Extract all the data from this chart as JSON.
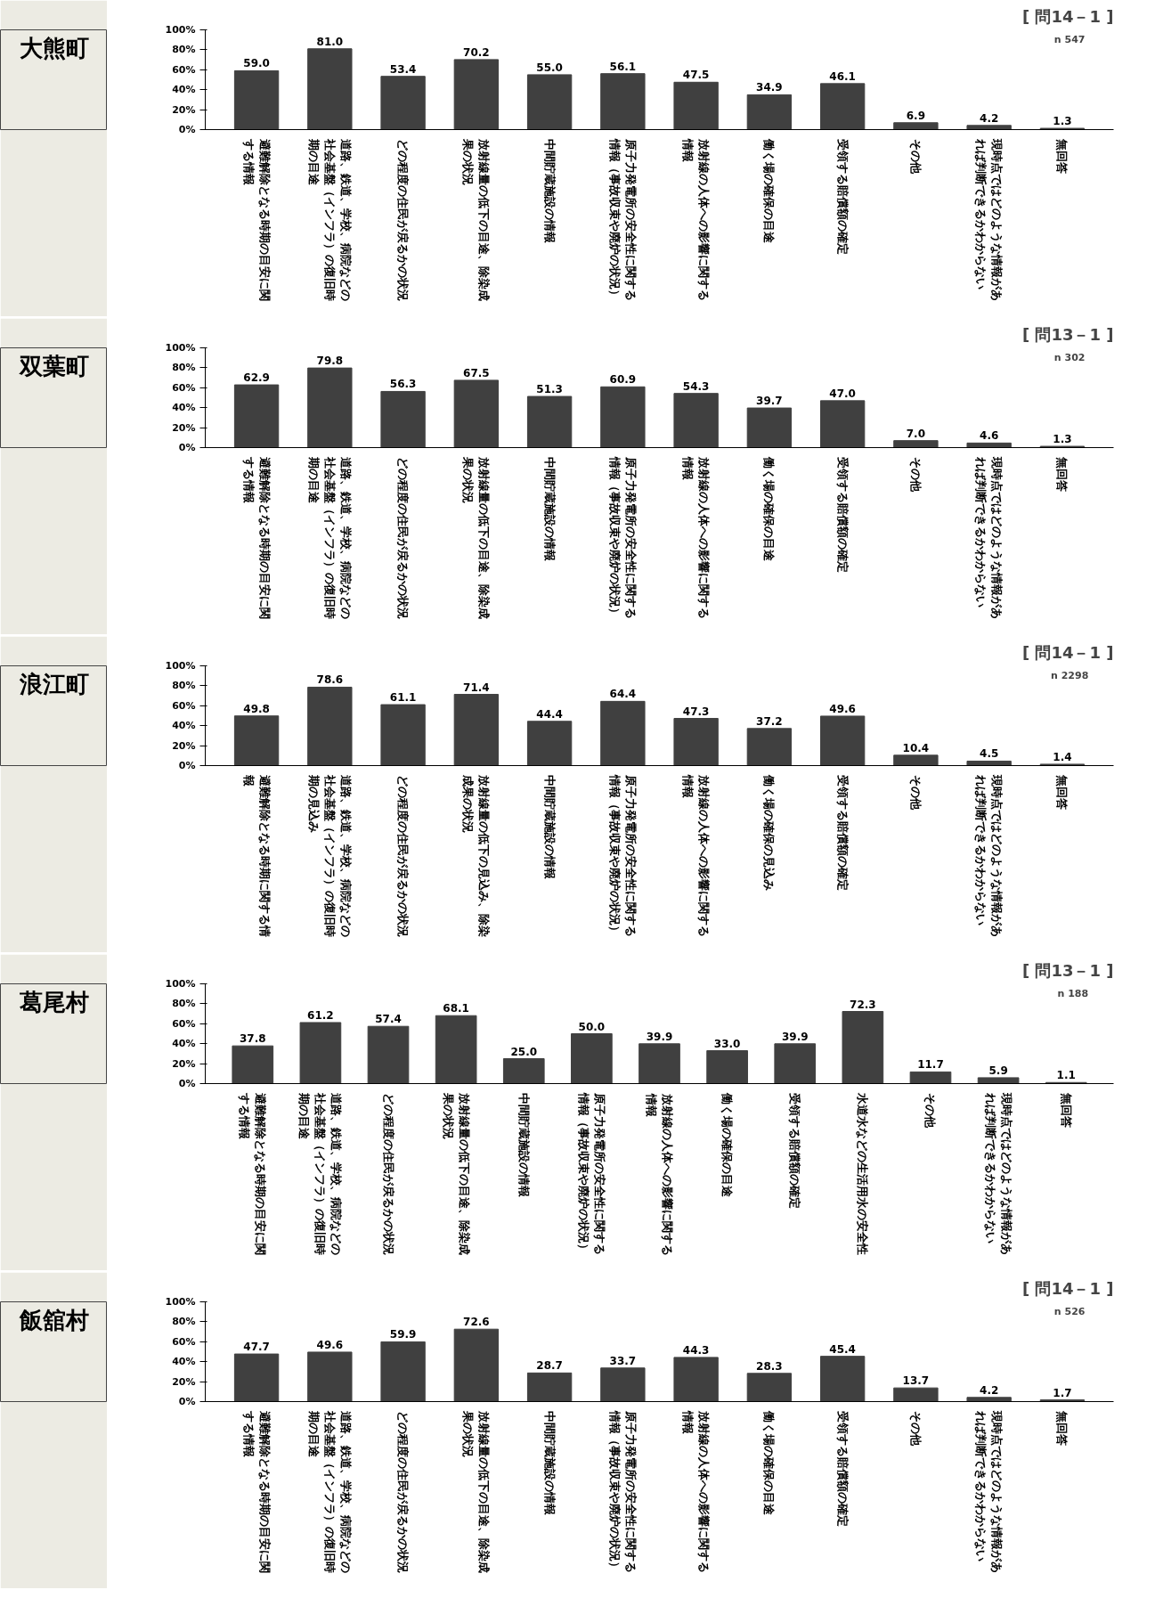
{
  "chart_data": [
    {
      "type": "bar",
      "title": "大熊町",
      "subtitle": "[ 問14－1 ]",
      "annotations": [
        "n 547"
      ],
      "color": "#404040",
      "ylim": [
        0,
        100
      ],
      "yticks": [
        {
          "value": 0,
          "label": "0%"
        },
        {
          "value": 20,
          "label": "20%"
        },
        {
          "value": 40,
          "label": "40%"
        },
        {
          "value": 60,
          "label": "60%"
        },
        {
          "value": 80,
          "label": "80%"
        },
        {
          "value": 100,
          "label": "100%"
        }
      ],
      "categories": [
        "避難解除となる時期の目安に関する情報",
        "道路、鉄道、学校、病院などの社会基盤（インフラ）の復旧時期の目途",
        "どの程度の住民が戻るかの状況",
        "放射線量の低下の目途、除染成果の状況",
        "中間貯蔵施設の情報",
        "原子力発電所の安全性に関する情報（事故収束や廃炉の状況）",
        "放射線の人体への影響に関する情報",
        "働く場の確保の目途",
        "受領する賠償額の確定",
        "その他",
        "現時点ではどのような情報があれば判断できるかわからない",
        "無回答"
      ],
      "values": [
        59.0,
        81.0,
        53.4,
        70.2,
        55.0,
        56.1,
        47.5,
        34.9,
        46.1,
        6.9,
        4.2,
        1.3
      ],
      "value_labels": [
        "59.0",
        "81.0",
        "53.4",
        "70.2",
        "55.0",
        "56.1",
        "47.5",
        "34.9",
        "46.1",
        "6.9",
        "4.2",
        "1.3"
      ]
    },
    {
      "type": "bar",
      "title": "双葉町",
      "subtitle": "[ 問13－1 ]",
      "annotations": [
        "n 302"
      ],
      "color": "#404040",
      "ylim": [
        0,
        100
      ],
      "yticks": [
        {
          "value": 0,
          "label": "0%"
        },
        {
          "value": 20,
          "label": "20%"
        },
        {
          "value": 40,
          "label": "40%"
        },
        {
          "value": 60,
          "label": "60%"
        },
        {
          "value": 80,
          "label": "80%"
        },
        {
          "value": 100,
          "label": "100%"
        }
      ],
      "categories": [
        "避難解除となる時期の目安に関する情報",
        "道路、鉄道、学校、病院などの社会基盤（インフラ）の復旧時期の目途",
        "どの程度の住民が戻るかの状況",
        "放射線量の低下の目途、除染成果の状況",
        "中間貯蔵施設の情報",
        "原子力発電所の安全性に関する情報（事故収束や廃炉の状況）",
        "放射線の人体への影響に関する情報",
        "働く場の確保の目途",
        "受領する賠償額の確定",
        "その他",
        "現時点ではどのような情報があれば判断できるかわからない",
        "無回答"
      ],
      "values": [
        62.9,
        79.8,
        56.3,
        67.5,
        51.3,
        60.9,
        54.3,
        39.7,
        47.0,
        7.0,
        4.6,
        1.3
      ],
      "value_labels": [
        "62.9",
        "79.8",
        "56.3",
        "67.5",
        "51.3",
        "60.9",
        "54.3",
        "39.7",
        "47.0",
        "7.0",
        "4.6",
        "1.3"
      ]
    },
    {
      "type": "bar",
      "title": "浪江町",
      "subtitle": "[ 問14－1 ]",
      "annotations": [
        "n 2298"
      ],
      "color": "#404040",
      "ylim": [
        0,
        100
      ],
      "yticks": [
        {
          "value": 0,
          "label": "0%"
        },
        {
          "value": 20,
          "label": "20%"
        },
        {
          "value": 40,
          "label": "40%"
        },
        {
          "value": 60,
          "label": "60%"
        },
        {
          "value": 80,
          "label": "80%"
        },
        {
          "value": 100,
          "label": "100%"
        }
      ],
      "categories": [
        "避難解除となる時期に関する情報",
        "道路、鉄道、学校、病院などの社会基盤（インフラ）の復旧時期の見込み",
        "どの程度の住民が戻るかの状況",
        "放射線量の低下の見込み、除染成果の状況",
        "中間貯蔵施設の情報",
        "原子力発電所の安全性に関する情報（事故収束や廃炉の状況）",
        "放射線の人体への影響に関する情報",
        "働く場の確保の見込み",
        "受領する賠償額の確定",
        "その他",
        "現時点ではどのような情報があれば判断できるかわからない",
        "無回答"
      ],
      "values": [
        49.8,
        78.6,
        61.1,
        71.4,
        44.4,
        64.4,
        47.3,
        37.2,
        49.6,
        10.4,
        4.5,
        1.4
      ],
      "value_labels": [
        "49.8",
        "78.6",
        "61.1",
        "71.4",
        "44.4",
        "64.4",
        "47.3",
        "37.2",
        "49.6",
        "10.4",
        "4.5",
        "1.4"
      ]
    },
    {
      "type": "bar",
      "title": "葛尾村",
      "subtitle": "[ 問13－1 ]",
      "annotations": [
        "n 188"
      ],
      "color": "#404040",
      "ylim": [
        0,
        100
      ],
      "yticks": [
        {
          "value": 0,
          "label": "0%"
        },
        {
          "value": 20,
          "label": "20%"
        },
        {
          "value": 40,
          "label": "40%"
        },
        {
          "value": 60,
          "label": "60%"
        },
        {
          "value": 80,
          "label": "80%"
        },
        {
          "value": 100,
          "label": "100%"
        }
      ],
      "categories": [
        "避難解除となる時期の目安に関する情報",
        "道路、鉄道、学校、病院などの社会基盤（インフラ）の復旧時期の目途",
        "どの程度の住民が戻るかの状況",
        "放射線量の低下の目途、除染成果の状況",
        "中間貯蔵施設の情報",
        "原子力発電所の安全性に関する情報（事故収束や廃炉の状況）",
        "放射線の人体への影響に関する情報",
        "働く場の確保の目途",
        "受領する賠償額の確定",
        "水道水などの生活用水の安全性",
        "その他",
        "現時点ではどのような情報があれば判断できるかわからない",
        "無回答"
      ],
      "values": [
        37.8,
        61.2,
        57.4,
        68.1,
        25.0,
        50.0,
        39.9,
        33.0,
        39.9,
        72.3,
        11.7,
        5.9,
        1.1
      ],
      "value_labels": [
        "37.8",
        "61.2",
        "57.4",
        "68.1",
        "25.0",
        "50.0",
        "39.9",
        "33.0",
        "39.9",
        "72.3",
        "11.7",
        "5.9",
        "1.1"
      ]
    },
    {
      "type": "bar",
      "title": "飯舘村",
      "subtitle": "[ 問14－1 ]",
      "annotations": [
        "n 526"
      ],
      "color": "#404040",
      "ylim": [
        0,
        100
      ],
      "yticks": [
        {
          "value": 0,
          "label": "0%"
        },
        {
          "value": 20,
          "label": "20%"
        },
        {
          "value": 40,
          "label": "40%"
        },
        {
          "value": 60,
          "label": "60%"
        },
        {
          "value": 80,
          "label": "80%"
        },
        {
          "value": 100,
          "label": "100%"
        }
      ],
      "categories": [
        "避難解除となる時期の目安に関する情報",
        "道路、鉄道、学校、病院などの社会基盤（インフラ）の復旧時期の目途",
        "どの程度の住民が戻るかの状況",
        "放射線量の低下の目途、除染成果の状況",
        "中間貯蔵施設の情報",
        "原子力発電所の安全性に関する情報（事故収束や廃炉の状況）",
        "放射線の人体への影響に関する情報",
        "働く場の確保の目途",
        "受領する賠償額の確定",
        "その他",
        "現時点ではどのような情報があれば判断できるかわからない",
        "無回答"
      ],
      "values": [
        47.7,
        49.6,
        59.9,
        72.6,
        28.7,
        33.7,
        44.3,
        28.3,
        45.4,
        13.7,
        4.2,
        1.7
      ],
      "value_labels": [
        "47.7",
        "49.6",
        "59.9",
        "72.6",
        "28.7",
        "33.7",
        "44.3",
        "28.3",
        "45.4",
        "13.7",
        "4.2",
        "1.7"
      ]
    }
  ]
}
